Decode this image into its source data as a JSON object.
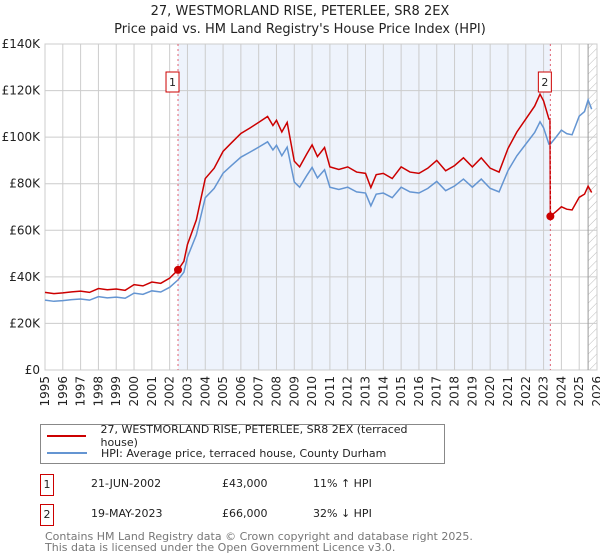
{
  "chart_data": {
    "type": "line",
    "title": "27, WESTMORLAND RISE, PETERLEE, SR8 2EX",
    "subtitle": "Price paid vs. HM Land Registry's House Price Index (HPI)",
    "xlim": [
      1995,
      2026
    ],
    "ylim": [
      0,
      140000
    ],
    "yticks": [
      {
        "v": 0,
        "label": "£0"
      },
      {
        "v": 20000,
        "label": "£20K"
      },
      {
        "v": 40000,
        "label": "£40K"
      },
      {
        "v": 60000,
        "label": "£60K"
      },
      {
        "v": 80000,
        "label": "£80K"
      },
      {
        "v": 100000,
        "label": "£100K"
      },
      {
        "v": 120000,
        "label": "£120K"
      },
      {
        "v": 140000,
        "label": "£140K"
      }
    ],
    "xticks": [
      "1995",
      "1996",
      "1997",
      "1998",
      "1999",
      "2000",
      "2001",
      "2002",
      "2003",
      "2004",
      "2005",
      "2006",
      "2007",
      "2008",
      "2009",
      "2010",
      "2011",
      "2012",
      "2013",
      "2014",
      "2015",
      "2016",
      "2017",
      "2018",
      "2019",
      "2020",
      "2021",
      "2022",
      "2023",
      "2024",
      "2025",
      "2026"
    ],
    "grid": true,
    "legend": [
      {
        "label": "27, WESTMORLAND RISE, PETERLEE, SR8 2EX (terraced house)",
        "color": "#cc0000"
      },
      {
        "label": "HPI: Average price, terraced house, County Durham",
        "color": "#6495d2"
      }
    ],
    "hpi": {
      "x": [
        1995,
        1995.5,
        1996,
        1996.5,
        1997,
        1997.5,
        1998,
        1998.5,
        1999,
        1999.5,
        2000,
        2000.5,
        2001,
        2001.5,
        2002,
        2002.47,
        2002.8,
        2003,
        2003.5,
        2004,
        2004.5,
        2005,
        2005.5,
        2006,
        2006.5,
        2007,
        2007.5,
        2007.8,
        2008,
        2008.3,
        2008.6,
        2009,
        2009.3,
        2009.7,
        2010,
        2010.3,
        2010.7,
        2011,
        2011.5,
        2012,
        2012.5,
        2013,
        2013.3,
        2013.6,
        2014,
        2014.5,
        2015,
        2015.5,
        2016,
        2016.5,
        2017,
        2017.5,
        2018,
        2018.5,
        2019,
        2019.5,
        2020,
        2020.5,
        2021,
        2021.5,
        2022,
        2022.5,
        2022.8,
        2023,
        2023.3,
        2023.38,
        2023.7,
        2024,
        2024.3,
        2024.6,
        2025,
        2025.3,
        2025.5,
        2025.7
      ],
      "y": [
        30000,
        29500,
        29800,
        30200,
        30500,
        30000,
        31500,
        31000,
        31300,
        30800,
        33000,
        32500,
        34000,
        33500,
        35500,
        38700,
        42000,
        48500,
        58000,
        74000,
        78000,
        84500,
        88000,
        91400,
        93500,
        95700,
        98000,
        94500,
        96500,
        92000,
        95700,
        80700,
        78500,
        83500,
        87000,
        82500,
        86000,
        78500,
        77500,
        78500,
        76500,
        76000,
        70500,
        75500,
        76000,
        74000,
        78500,
        76500,
        76000,
        78000,
        81000,
        77000,
        79000,
        82000,
        78500,
        82000,
        78000,
        76500,
        85600,
        92000,
        97000,
        102000,
        106600,
        104000,
        97000,
        97000,
        100000,
        103000,
        101500,
        101000,
        109000,
        111000,
        116000,
        112000
      ]
    },
    "sales": [
      {
        "num": "1",
        "x": 2002.47,
        "price": 43000,
        "date": "21-JUN-2002",
        "price_label": "£43,000",
        "hpi_diff": "11% ↑ HPI"
      },
      {
        "num": "2",
        "x": 2023.38,
        "price": 66000,
        "date": "19-MAY-2023",
        "price_label": "£66,000",
        "hpi_diff": "32% ↓ HPI"
      }
    ],
    "forecast_from": 2025.5,
    "colors": {
      "property": "#cc0000",
      "hpi": "#6495d2",
      "shade": "#eef3fc"
    }
  },
  "footer": {
    "line1": "Contains HM Land Registry data © Crown copyright and database right 2025.",
    "line2": "This data is licensed under the Open Government Licence v3.0."
  }
}
